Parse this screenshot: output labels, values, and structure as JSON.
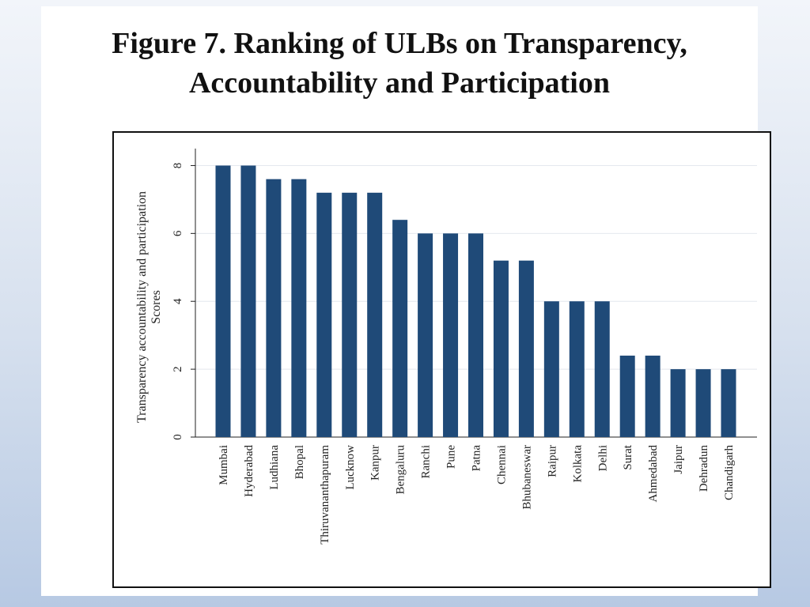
{
  "title_line1": "Figure 7. Ranking of  ULBs on Transparency,",
  "title_line2": "Accountability and Participation",
  "chart_data": {
    "type": "bar",
    "title": "Figure 7. Ranking of  ULBs on Transparency, Accountability and Participation",
    "ylabel_line1": "Transparency accountability and participation",
    "ylabel_line2": "Scores",
    "categories": [
      "Mumbai",
      "Hyderabad",
      "Ludhiana",
      "Bhopal",
      "Thiruvananthapuram",
      "Lucknow",
      "Kanpur",
      "Bengaluru",
      "Ranchi",
      "Pune",
      "Patna",
      "Chennai",
      "Bhubaneswar",
      "Raipur",
      "Kolkata",
      "Delhi",
      "Surat",
      "Ahmedabad",
      "Jaipur",
      "Dehradun",
      "Chandigarh"
    ],
    "values": [
      8,
      8,
      7.6,
      7.6,
      7.2,
      7.2,
      7.2,
      6.4,
      6,
      6,
      6,
      5.2,
      5.2,
      4,
      4,
      4,
      2.4,
      2.4,
      2,
      2,
      2
    ],
    "ylim": [
      0,
      8.5
    ],
    "yticks": [
      0,
      2,
      4,
      6,
      8
    ],
    "grid": true,
    "bar_color": "#1f4a78"
  }
}
